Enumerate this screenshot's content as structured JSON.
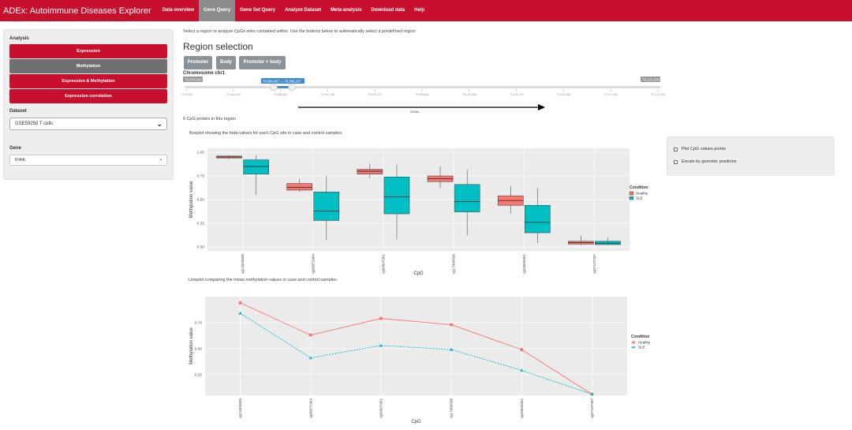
{
  "navbar": {
    "brand": "ADEx: Autoimmune Diseases Explorer",
    "links": [
      "Data overview",
      "Gene Query",
      "Gene Set Query",
      "Analyze Dataset",
      "Meta-analysis",
      "Download data",
      "Help"
    ],
    "active": "Gene Query"
  },
  "sidebar": {
    "analysis_label": "Analysis",
    "buttons": [
      "Expression",
      "Methylation",
      "Expression & Methylation",
      "Expression correlation"
    ],
    "selected_button": "Methylation",
    "dataset_label": "Dataset",
    "dataset_value": "GSE59250 T cells",
    "gene_label": "Gene",
    "gene_value": "IFI44L"
  },
  "main": {
    "intro": "Select a region to analyze CpGs sites contained within. Use the buttons below to automatically select a predefined region",
    "region_title": "Region selection",
    "region_buttons": [
      "Promoter",
      "Body",
      "Promoter + body"
    ],
    "chromosome_label": "Chromosome chr1",
    "slider": {
      "min_label": "79,079,067",
      "max_label": "79,131,633",
      "range_label": "79,084,067 — 79,088,267",
      "range_from": 79084067,
      "range_to": 79088267,
      "ticks": [
        "79,079,067",
        "79,083,445",
        "79,088,311",
        "79,092,786",
        "79,096,272",
        "79,099,802",
        "79,103,288",
        "79,106,196",
        "79,110,683",
        "79,117,090",
        "79,121,633"
      ],
      "gene_track": "IFI44L"
    },
    "probe_count": "6 CpG probes in this region",
    "boxplot_caption": "Boxplot showing the beta-values for each CpG site in case and control samples.",
    "lineplot_caption": "Lineplot comparing the mean methylation values in case and control samples."
  },
  "options": {
    "plot_points": "Plot CpG values points",
    "escale": "Escale by genomic positions"
  },
  "colors": {
    "healthy": "#f8766d",
    "sle": "#00bfc4",
    "brand": "#c8102e"
  },
  "chart_data": [
    {
      "type": "boxplot",
      "xlabel": "CpG",
      "ylabel": "Methylation value",
      "ylim": [
        0,
        1.0
      ],
      "yticks": [
        "0.00",
        "0.25",
        "0.50",
        "0.75",
        "1.00"
      ],
      "categories": [
        "cg13304609",
        "cg06872964",
        "cg00607951",
        "cg17980508",
        "cg03650561",
        "cg07107287"
      ],
      "legend_title": "Condition",
      "series": [
        {
          "name": "Healthy",
          "boxes": [
            {
              "min": 0.93,
              "q1": 0.94,
              "median": 0.95,
              "q3": 0.96,
              "max": 0.97
            },
            {
              "min": 0.58,
              "q1": 0.6,
              "median": 0.63,
              "q3": 0.67,
              "max": 0.72
            },
            {
              "min": 0.73,
              "q1": 0.77,
              "median": 0.8,
              "q3": 0.82,
              "max": 0.88
            },
            {
              "min": 0.62,
              "q1": 0.69,
              "median": 0.72,
              "q3": 0.75,
              "max": 0.85
            },
            {
              "min": 0.35,
              "q1": 0.44,
              "median": 0.49,
              "q3": 0.54,
              "max": 0.64
            },
            {
              "min": 0.02,
              "q1": 0.03,
              "median": 0.045,
              "q3": 0.06,
              "max": 0.12
            }
          ]
        },
        {
          "name": "SLE",
          "boxes": [
            {
              "min": 0.55,
              "q1": 0.77,
              "median": 0.85,
              "q3": 0.92,
              "max": 0.97
            },
            {
              "min": 0.07,
              "q1": 0.28,
              "median": 0.38,
              "q3": 0.58,
              "max": 0.75
            },
            {
              "min": 0.08,
              "q1": 0.35,
              "median": 0.53,
              "q3": 0.74,
              "max": 0.87
            },
            {
              "min": 0.12,
              "q1": 0.37,
              "median": 0.48,
              "q3": 0.66,
              "max": 0.82
            },
            {
              "min": 0.04,
              "q1": 0.15,
              "median": 0.26,
              "q3": 0.44,
              "max": 0.62
            },
            {
              "min": 0.02,
              "q1": 0.025,
              "median": 0.04,
              "q3": 0.06,
              "max": 0.1
            }
          ]
        }
      ]
    },
    {
      "type": "line",
      "xlabel": "CpG",
      "ylabel": "Methylation value",
      "ylim": [
        0.05,
        1.0
      ],
      "yticks": [
        "0.25",
        "0.50",
        "0.75"
      ],
      "categories": [
        "cg13304609",
        "cg06872964",
        "cg00607951",
        "cg17980508",
        "cg03650561",
        "cg07107287"
      ],
      "legend_title": "Condition",
      "series": [
        {
          "name": "Healthy",
          "values": [
            0.94,
            0.63,
            0.79,
            0.73,
            0.49,
            0.06
          ]
        },
        {
          "name": "SLE",
          "values": [
            0.84,
            0.41,
            0.53,
            0.49,
            0.29,
            0.06
          ]
        }
      ]
    }
  ]
}
